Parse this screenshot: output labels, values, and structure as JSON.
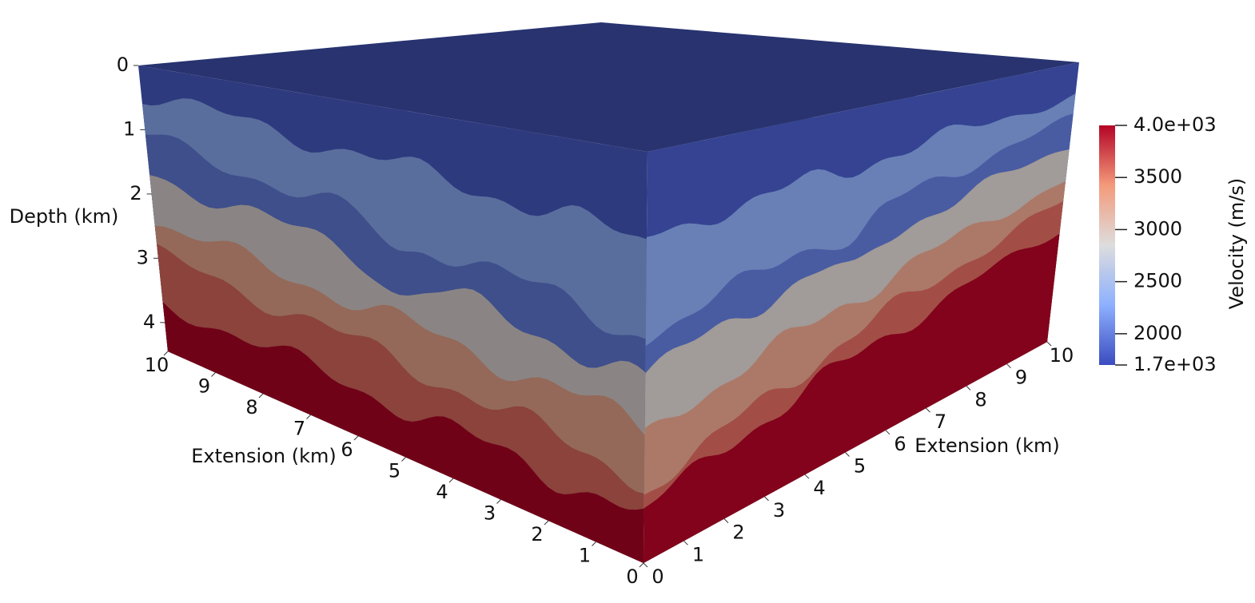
{
  "chart_data": {
    "type": "volume",
    "depth_label": "Depth (km)",
    "x_label": "Extension (km)",
    "y_label": "Extension (km)",
    "zlim": [
      0,
      4.45
    ],
    "zticks": [
      0,
      1,
      2,
      3,
      4
    ],
    "xlim": [
      0,
      10
    ],
    "xticks": [
      0,
      1,
      2,
      3,
      4,
      5,
      6,
      7,
      8,
      9,
      10
    ],
    "ylim": [
      0,
      10
    ],
    "yticks": [
      0,
      1,
      2,
      3,
      4,
      5,
      6,
      7,
      8,
      9,
      10
    ],
    "layers": [
      1800,
      2300,
      2000,
      2900,
      3300,
      3600,
      4000
    ],
    "colorbar": {
      "title": "Velocity (m/s)",
      "lim": [
        1700,
        4000
      ],
      "ticks": [
        {
          "value": 4000,
          "label": "4.0e+03"
        },
        3500,
        3000,
        2500,
        2000,
        {
          "value": 1700,
          "label": "1.7e+03"
        }
      ],
      "colors": [
        "#3b4cc0",
        "#8db0fe",
        "#dddddd",
        "#f49a7b",
        "#b40426"
      ]
    }
  }
}
